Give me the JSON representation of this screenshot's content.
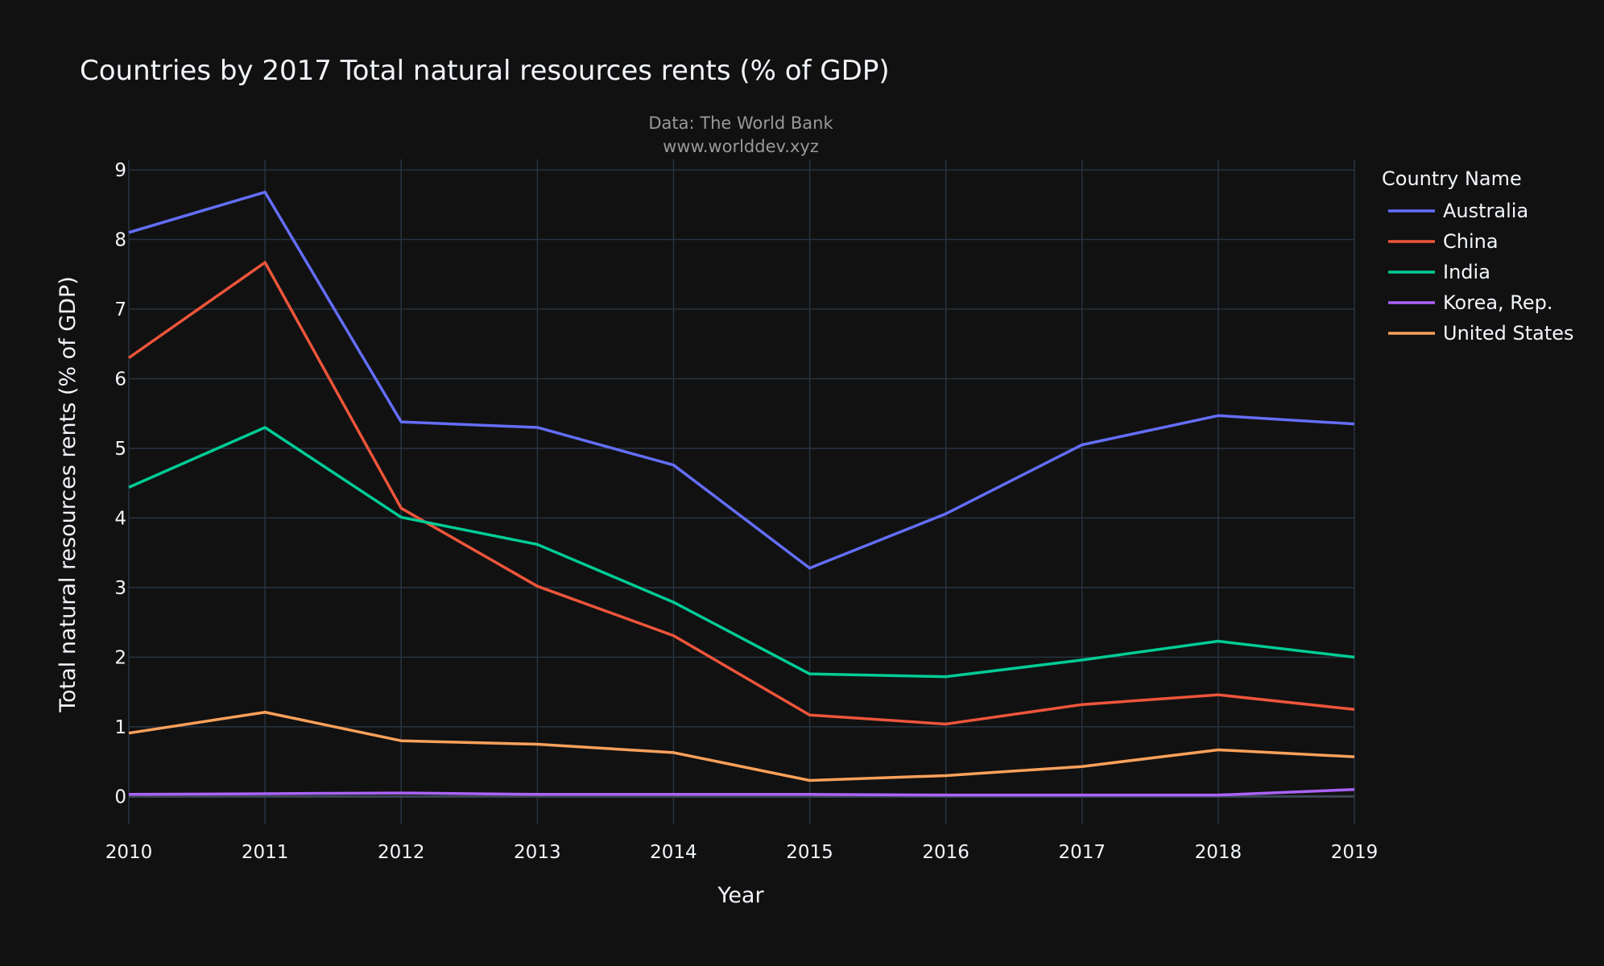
{
  "chart_data": {
    "type": "line",
    "title": "Countries by 2017 Total natural resources rents (% of GDP)",
    "subtitle_lines": [
      "Data: The World Bank",
      "www.worlddev.xyz"
    ],
    "xlabel": "Year",
    "ylabel": "Total natural resources rents (% of GDP)",
    "x": [
      2010,
      2011,
      2012,
      2013,
      2014,
      2015,
      2016,
      2017,
      2018,
      2019
    ],
    "xlim": [
      2010,
      2019
    ],
    "ylim": [
      -0.4,
      9.15
    ],
    "y_ticks": [
      0,
      1,
      2,
      3,
      4,
      5,
      6,
      7,
      8,
      9
    ],
    "grid": true,
    "legend": {
      "title": "Country Name",
      "placement": "top-right"
    },
    "series": [
      {
        "name": "Australia",
        "color": "#636efa",
        "values": [
          8.1,
          8.68,
          5.38,
          5.3,
          4.76,
          3.28,
          4.06,
          5.05,
          5.47,
          5.35
        ]
      },
      {
        "name": "China",
        "color": "#ef553b",
        "values": [
          6.3,
          7.67,
          4.14,
          3.02,
          2.31,
          1.17,
          1.04,
          1.32,
          1.46,
          1.25
        ]
      },
      {
        "name": "India",
        "color": "#00cc96",
        "values": [
          4.44,
          5.3,
          4.01,
          3.62,
          2.79,
          1.76,
          1.72,
          1.96,
          2.23,
          2.0
        ]
      },
      {
        "name": "Korea, Rep.",
        "color": "#ab63fa",
        "values": [
          0.03,
          0.04,
          0.05,
          0.03,
          0.03,
          0.03,
          0.02,
          0.02,
          0.02,
          0.1
        ]
      },
      {
        "name": "United States",
        "color": "#ffa15a",
        "values": [
          0.91,
          1.21,
          0.8,
          0.75,
          0.63,
          0.23,
          0.3,
          0.43,
          0.67,
          0.57
        ]
      }
    ]
  }
}
